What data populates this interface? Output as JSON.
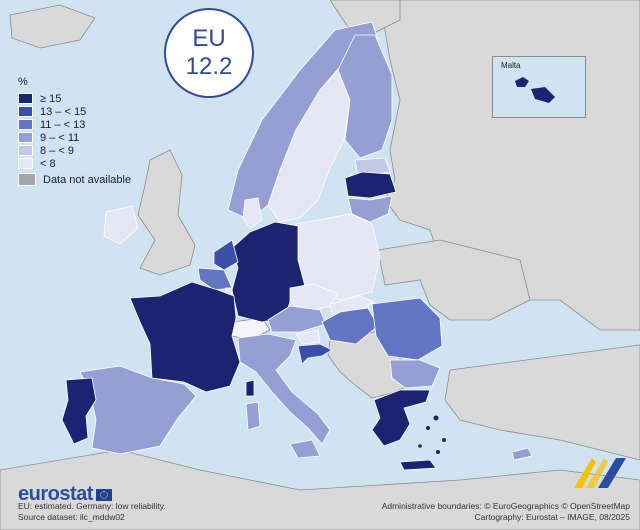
{
  "eu_badge": {
    "line1": "EU",
    "line2": "12.2"
  },
  "legend": {
    "title": "%",
    "classes": [
      {
        "label": "≥ 15",
        "color": "#1a2470"
      },
      {
        "label": "13 – < 15",
        "color": "#3a4fa7"
      },
      {
        "label": "11 – < 13",
        "color": "#6374c2"
      },
      {
        "label": "9 – < 11",
        "color": "#959fd4"
      },
      {
        "label": "8 – < 9",
        "color": "#c2c7e8"
      },
      {
        "label": "< 8",
        "color": "#e5e7f4"
      }
    ],
    "not_available": {
      "label": "Data not available",
      "color": "#a6a6a6"
    }
  },
  "colors": {
    "sea": "#cfe3f1",
    "non_eu_land": "#d9d9d9",
    "border": "#555555"
  },
  "inset": {
    "label": "Malta"
  },
  "branding": {
    "logo": "eurostat"
  },
  "footer": {
    "left_line1": "EU: estimated. Germany: low reliability.",
    "left_line2": "Source dataset: ilc_mddw02",
    "right_line1": "Administrative boundaries: © EuroGeographics © OpenStreetMap",
    "right_line2": "Cartography: Eurostat – IMAGE, 08/2025"
  }
}
